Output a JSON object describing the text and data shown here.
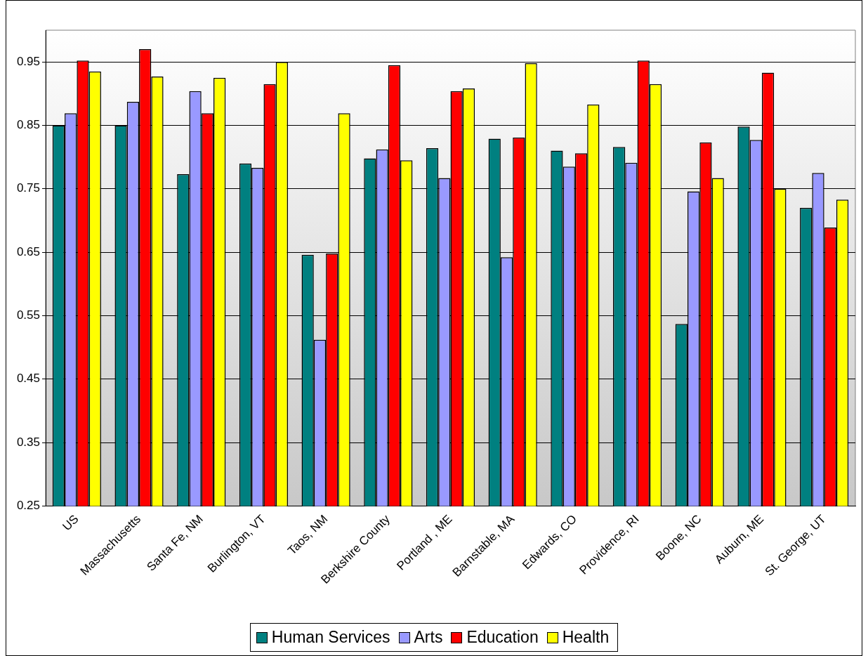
{
  "chart_data": {
    "type": "bar",
    "categories": [
      "US",
      "Massachusetts",
      "Santa Fe, NM",
      "Burlington, VT",
      "Taos, NM",
      "Berkshire County",
      "Portland , ME",
      "Barnstable, MA",
      "Edwards, CO",
      "Providence, RI",
      "Boone, NC",
      "Auburn, ME",
      "St. George, UT"
    ],
    "series": [
      {
        "name": "Human Services",
        "color": "#008080",
        "values": [
          0.85,
          0.85,
          0.773,
          0.79,
          0.646,
          0.798,
          0.814,
          0.829,
          0.81,
          0.816,
          0.537,
          0.848,
          0.72
        ]
      },
      {
        "name": "Arts",
        "color": "#9999ff",
        "values": [
          0.869,
          0.887,
          0.904,
          0.783,
          0.512,
          0.812,
          0.767,
          0.642,
          0.785,
          0.791,
          0.746,
          0.827,
          0.775
        ]
      },
      {
        "name": "Education",
        "color": "#ff0000",
        "values": [
          0.952,
          0.97,
          0.869,
          0.915,
          0.648,
          0.945,
          0.904,
          0.831,
          0.806,
          0.952,
          0.823,
          0.933,
          0.689
        ]
      },
      {
        "name": "Health",
        "color": "#ffff00",
        "values": [
          0.935,
          0.927,
          0.925,
          0.95,
          0.869,
          0.795,
          0.908,
          0.948,
          0.883,
          0.915,
          0.767,
          0.75,
          0.733
        ]
      }
    ],
    "ylim": [
      0.25,
      1.0
    ],
    "yticks": [
      0.25,
      0.35,
      0.45,
      0.55,
      0.65,
      0.75,
      0.85,
      0.95
    ],
    "grid": "y",
    "legend": "bottom"
  }
}
